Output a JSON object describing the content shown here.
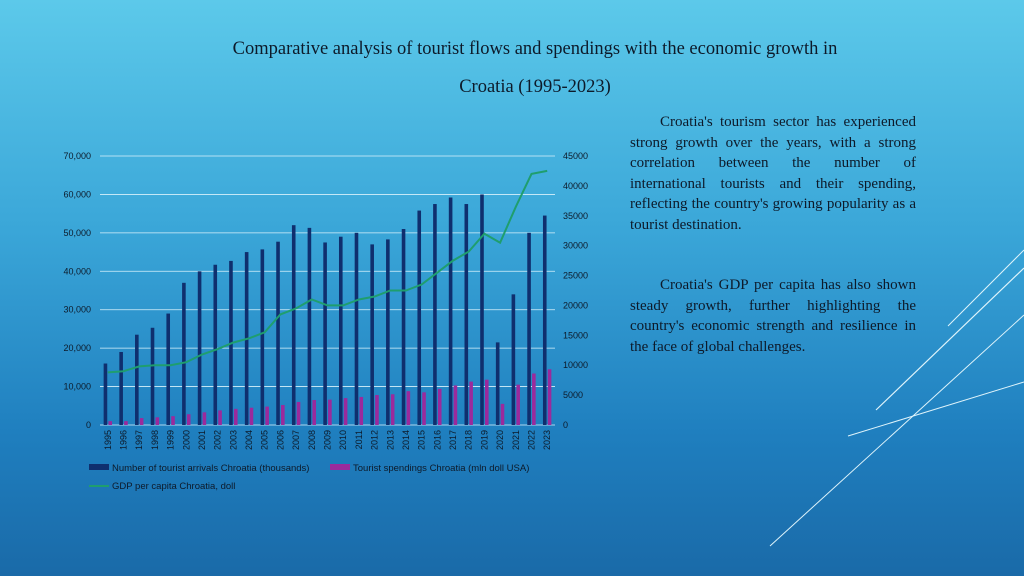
{
  "slide": {
    "title_line1": "Comparative analysis of tourist flows and spendings with the economic growth in",
    "title_line2": "Croatia (1995-2023)",
    "paragraph1": "Croatia's tourism sector has experienced strong growth over the years, with a strong correlation between the number of international tourists and their spending, reflecting the country's growing popularity as a tourist destination.",
    "paragraph2": "Croatia's GDP per capita has also shown steady growth, further highlighting the country's economic strength and resilience in the face of global challenges."
  },
  "colors": {
    "arrivals": "#0f2f6e",
    "spendings": "#9b2a9c",
    "gdp": "#1f9e6e",
    "gridline": "#d8f1fb",
    "text": "#0d1a2a"
  },
  "chart_data": {
    "type": "bar",
    "title": "",
    "categories": [
      "1995",
      "1996",
      "1997",
      "1998",
      "1999",
      "2000",
      "2001",
      "2002",
      "2003",
      "2004",
      "2005",
      "2006",
      "2007",
      "2008",
      "2009",
      "2010",
      "2011",
      "2012",
      "2013",
      "2014",
      "2015",
      "2016",
      "2017",
      "2018",
      "2019",
      "2020",
      "2021",
      "2022",
      "2023"
    ],
    "left_axis": {
      "ylim": [
        0,
        70000
      ],
      "ticks": [
        "0",
        "10,000",
        "20,000",
        "30,000",
        "40,000",
        "50,000",
        "60,000",
        "70,000"
      ]
    },
    "right_axis": {
      "ylim": [
        0,
        45000
      ],
      "ticks": [
        "0",
        "5000",
        "10000",
        "15000",
        "20000",
        "25000",
        "30000",
        "35000",
        "40000",
        "45000"
      ]
    },
    "grid": true,
    "legend_position": "bottom",
    "series": [
      {
        "name": "Number of tourist arrivals Chroatia (thousands)",
        "kind": "bar",
        "axis": "left",
        "values": [
          16000,
          19000,
          23500,
          25300,
          29000,
          37000,
          40000,
          41700,
          42700,
          45000,
          45700,
          47700,
          52000,
          51300,
          47500,
          49000,
          50000,
          47000,
          48300,
          51000,
          55800,
          57500,
          59200,
          57500,
          60000,
          21500,
          34000,
          50000,
          54500
        ]
      },
      {
        "name": "Tourist spendings Chroatia (mln doll USA)",
        "kind": "bar",
        "axis": "left",
        "values": [
          1000,
          1000,
          1800,
          2000,
          2300,
          2800,
          3300,
          3800,
          4200,
          4500,
          4800,
          5200,
          6000,
          6500,
          6600,
          7000,
          7300,
          7800,
          8000,
          8800,
          8500,
          9400,
          10300,
          11300,
          11800,
          5500,
          10500,
          13400,
          14500
        ]
      },
      {
        "name": "GDP per capita Chroatia, doll",
        "kind": "line",
        "axis": "right",
        "values": [
          8800,
          9000,
          9800,
          10000,
          10000,
          10500,
          11800,
          12700,
          13800,
          14500,
          15500,
          18500,
          19500,
          21000,
          20000,
          20000,
          21000,
          21500,
          22500,
          22500,
          23500,
          25500,
          27500,
          29000,
          32000,
          30500,
          36500,
          42000,
          42500
        ]
      }
    ]
  }
}
